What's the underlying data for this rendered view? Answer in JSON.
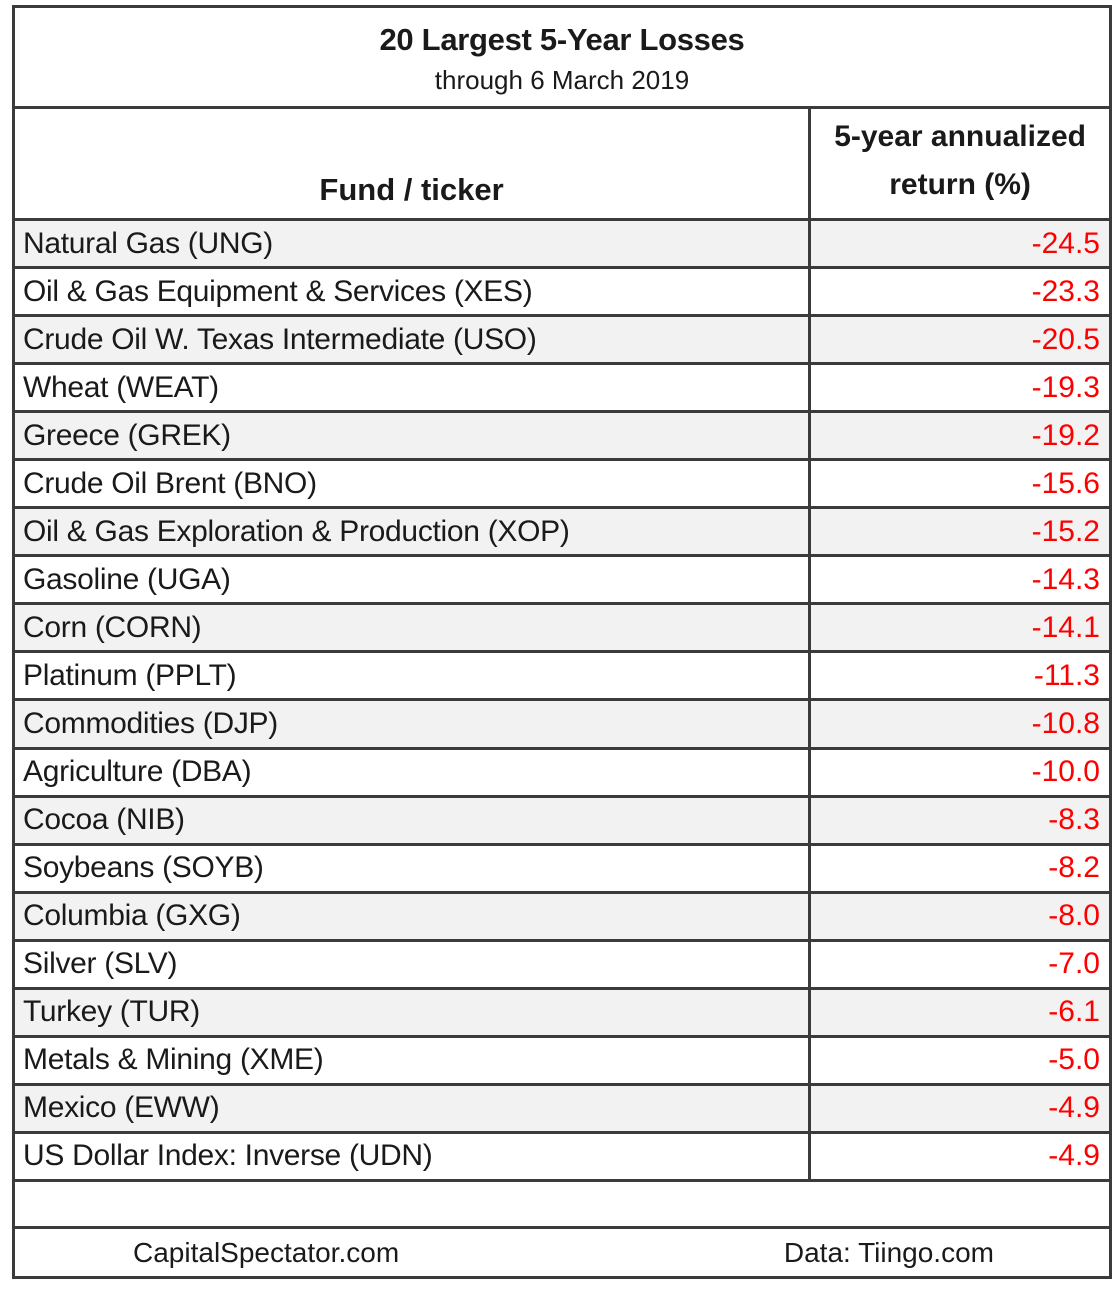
{
  "title": "20 Largest 5-Year Losses",
  "subtitle": "through 6 March 2019",
  "columns": {
    "fund": "Fund / ticker",
    "return": "5-year annualized return (%)"
  },
  "chart_data": {
    "type": "table",
    "title": "20 Largest 5-Year Losses",
    "subtitle": "through 6 March 2019",
    "columns": [
      "Fund / ticker",
      "5-year annualized return (%)"
    ],
    "rows": [
      [
        "Natural Gas (UNG)",
        -24.5
      ],
      [
        "Oil & Gas Equipment & Services (XES)",
        -23.3
      ],
      [
        "Crude Oil W. Texas Intermediate (USO)",
        -20.5
      ],
      [
        "Wheat (WEAT)",
        -19.3
      ],
      [
        "Greece (GREK)",
        -19.2
      ],
      [
        "Crude Oil Brent (BNO)",
        -15.6
      ],
      [
        "Oil & Gas Exploration & Production (XOP)",
        -15.2
      ],
      [
        "Gasoline (UGA)",
        -14.3
      ],
      [
        "Corn (CORN)",
        -14.1
      ],
      [
        "Platinum (PPLT)",
        -11.3
      ],
      [
        "Commodities (DJP)",
        -10.8
      ],
      [
        "Agriculture (DBA)",
        -10.0
      ],
      [
        "Cocoa (NIB)",
        -8.3
      ],
      [
        "Soybeans (SOYB)",
        -8.2
      ],
      [
        "Columbia (GXG)",
        -8.0
      ],
      [
        "Silver (SLV)",
        -7.0
      ],
      [
        "Turkey (TUR)",
        -6.1
      ],
      [
        "Metals & Mining (XME)",
        -5.0
      ],
      [
        "Mexico (EWW)",
        -4.9
      ],
      [
        "US Dollar Index: Inverse (UDN)",
        -4.9
      ]
    ],
    "value_format": "one_decimal",
    "layout": {
      "zebra_striping": true,
      "first_row_shaded": true,
      "values_color": "#fe0000"
    }
  },
  "footer": {
    "left": "CapitalSpectator.com",
    "right": "Data: Tiingo.com"
  },
  "colors": {
    "negative_value": "#fe0000",
    "row_shade": "#f2f2f2",
    "border": "#3b3b3b",
    "background": "#ffffff",
    "text": "#1a1a1a"
  }
}
